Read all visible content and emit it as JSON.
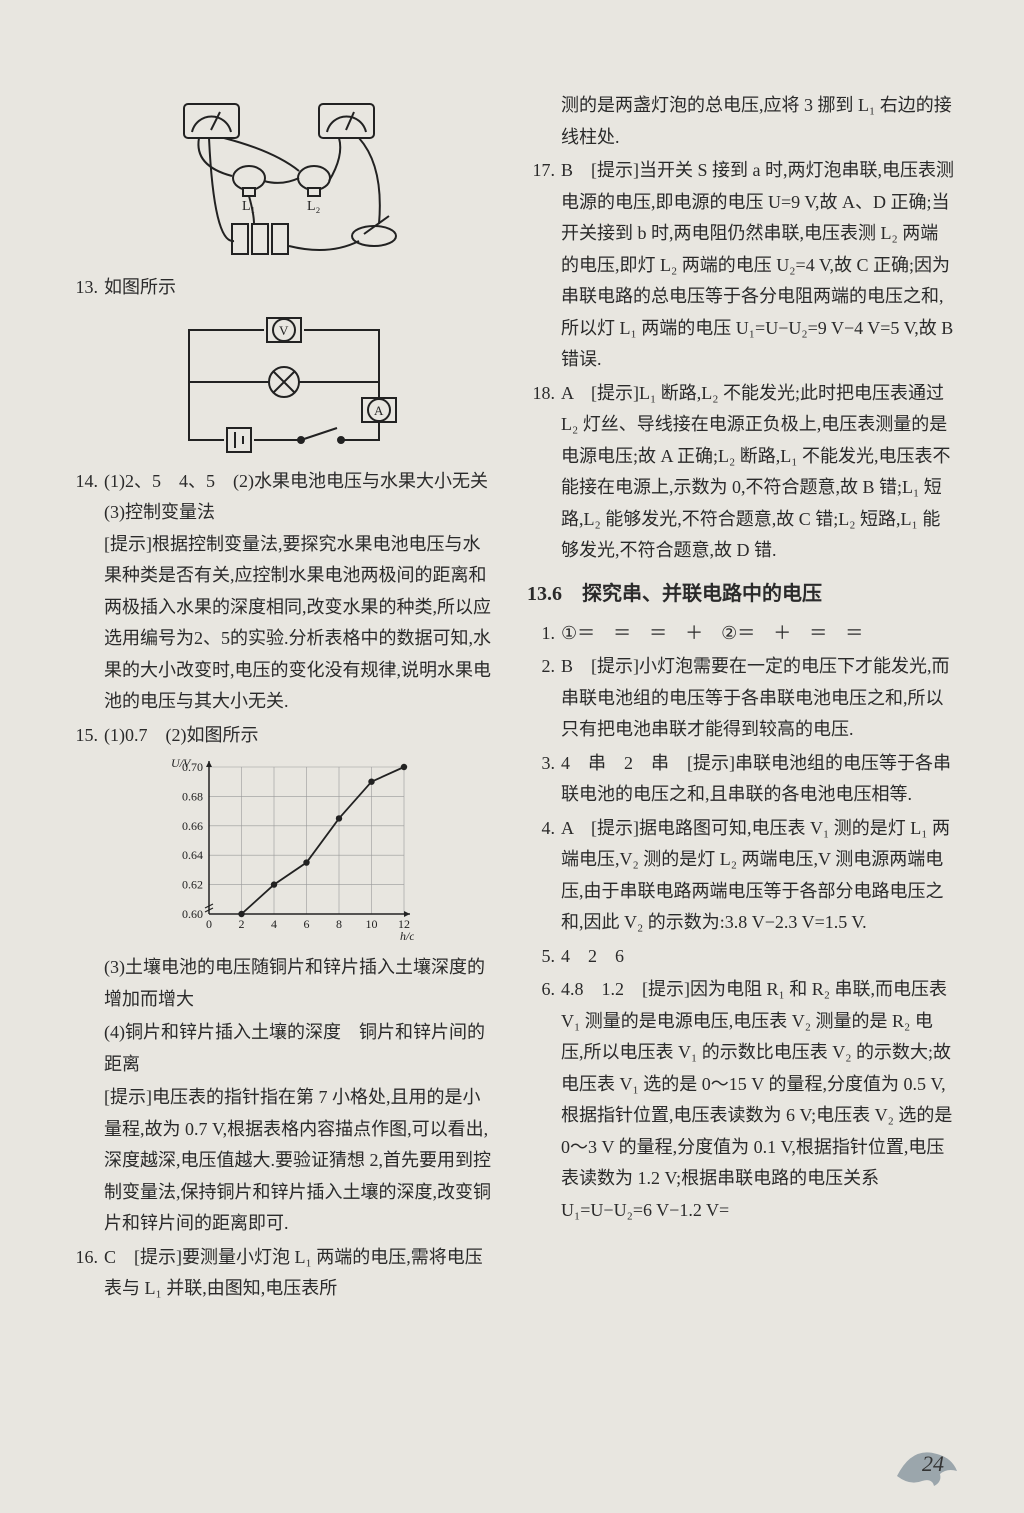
{
  "page_number": "24",
  "left": {
    "fig1_labels": {
      "L1": "L₁",
      "L2": "L₂"
    },
    "q13_num": "13.",
    "q13_caption": "如图所示",
    "q14_num": "14.",
    "q14_ans": "(1)2、5　4、5　(2)水果电池电压与水果大小无关　(3)控制变量法",
    "q14_hint_label": "[提示]",
    "q14_hint": "根据控制变量法,要探究水果电池电压与水果种类是否有关,应控制水果电池两极间的距离和两极插入水果的深度相同,改变水果的种类,所以应选用编号为2、5的实验.分析表格中的数据可知,水果的大小改变时,电压的变化没有规律,说明水果电池的电压与其大小无关.",
    "q15_num": "15.",
    "q15_ans": "(1)0.7　(2)如图所示",
    "chart": {
      "type": "line",
      "x_label": "h/cm",
      "y_label": "U/V",
      "x_ticks": [
        0,
        2,
        4,
        6,
        8,
        10,
        12
      ],
      "y_ticks": [
        0.6,
        0.62,
        0.64,
        0.66,
        0.68,
        0.7
      ],
      "points": [
        {
          "x": 2,
          "y": 0.6
        },
        {
          "x": 4,
          "y": 0.62
        },
        {
          "x": 6,
          "y": 0.635
        },
        {
          "x": 8,
          "y": 0.665
        },
        {
          "x": 10,
          "y": 0.69
        },
        {
          "x": 12,
          "y": 0.7
        }
      ],
      "line_color": "#222222",
      "marker_size": 3.2,
      "grid_color": "#999999",
      "background_color": "#e8e6e0",
      "axis_color": "#222222",
      "font_size": 12
    },
    "q15_p3": "(3)土壤电池的电压随铜片和锌片插入土壤深度的增加而增大",
    "q15_p4": "(4)铜片和锌片插入土壤的深度　铜片和锌片间的距离",
    "q15_hint_label": "[提示]",
    "q15_hint": "电压表的指针指在第 7 小格处,且用的是小量程,故为 0.7 V,根据表格内容描点作图,可以看出,深度越深,电压值越大.要验证猜想 2,首先要用到控制变量法,保持铜片和锌片插入土壤的深度,改变铜片和锌片间的距离即可.",
    "q16_num": "16.",
    "q16_ans": "C　",
    "q16_hint_label": "[提示]",
    "q16_hint": "要测量小灯泡 L₁ 两端的电压,需将电压表与 L₁ 并联,由图知,电压表所"
  },
  "right": {
    "q16_cont": "测的是两盏灯泡的总电压,应将 3 挪到 L₁ 右边的接线柱处.",
    "q17_num": "17.",
    "q17_ans": "B　",
    "q17_hint_label": "[提示]",
    "q17_hint": "当开关 S 接到 a 时,两灯泡串联,电压表测电源的电压,即电源的电压 U=9 V,故 A、D 正确;当开关接到 b 时,两电阻仍然串联,电压表测 L₂ 两端的电压,即灯 L₂ 两端的电压 U₂=4 V,故 C 正确;因为串联电路的总电压等于各分电阻两端的电压之和,所以灯 L₁ 两端的电压 U₁=U−U₂=9 V−4 V=5 V,故 B 错误.",
    "q18_num": "18.",
    "q18_ans": "A　",
    "q18_hint_label": "[提示]",
    "q18_hint": "L₁ 断路,L₂ 不能发光;此时把电压表通过 L₂ 灯丝、导线接在电源正负极上,电压表测量的是电源电压;故 A 正确;L₂ 断路,L₁ 不能发光,电压表不能接在电源上,示数为 0,不符合题意,故 B 错;L₁ 短路,L₂ 能够发光,不符合题意,故 C 错;L₂ 短路,L₁ 能够发光,不符合题意,故 D 错.",
    "section_title": "13.6　探究串、并联电路中的电压",
    "s1_num": "1.",
    "s1": "①＝　＝　＝　＋　②＝　＋　＝　＝",
    "s2_num": "2.",
    "s2_ans": "B　",
    "s2_hint_label": "[提示]",
    "s2_hint": "小灯泡需要在一定的电压下才能发光,而串联电池组的电压等于各串联电池电压之和,所以只有把电池串联才能得到较高的电压.",
    "s3_num": "3.",
    "s3_ans": "4　串　2　串　",
    "s3_hint_label": "[提示]",
    "s3_hint": "串联电池组的电压等于各串联电池的电压之和,且串联的各电池电压相等.",
    "s4_num": "4.",
    "s4_ans": "A　",
    "s4_hint_label": "[提示]",
    "s4_hint": "据电路图可知,电压表 V₁ 测的是灯 L₁ 两端电压,V₂ 测的是灯 L₂ 两端电压,V 测电源两端电压,由于串联电路两端电压等于各部分电路电压之和,因此 V₂ 的示数为:3.8 V−2.3 V=1.5 V.",
    "s5_num": "5.",
    "s5": "4　2　6",
    "s6_num": "6.",
    "s6_ans": "4.8　1.2　",
    "s6_hint_label": "[提示]",
    "s6_hint": "因为电阻 R₁ 和 R₂ 串联,而电压表 V₁ 测量的是电源电压,电压表 V₂ 测量的是 R₂ 电压,所以电压表 V₁ 的示数比电压表 V₂ 的示数大;故电压表 V₁ 选的是 0～15 V 的量程,分度值为 0.5 V,根据指针位置,电压表读数为 6 V;电压表 V₂ 选的是 0～3 V 的量程,分度值为 0.1 V,根据指针位置,电压表读数为 1.2 V;根据串联电路的电压关系 U₁=U−U₂=6 V−1.2 V="
  }
}
